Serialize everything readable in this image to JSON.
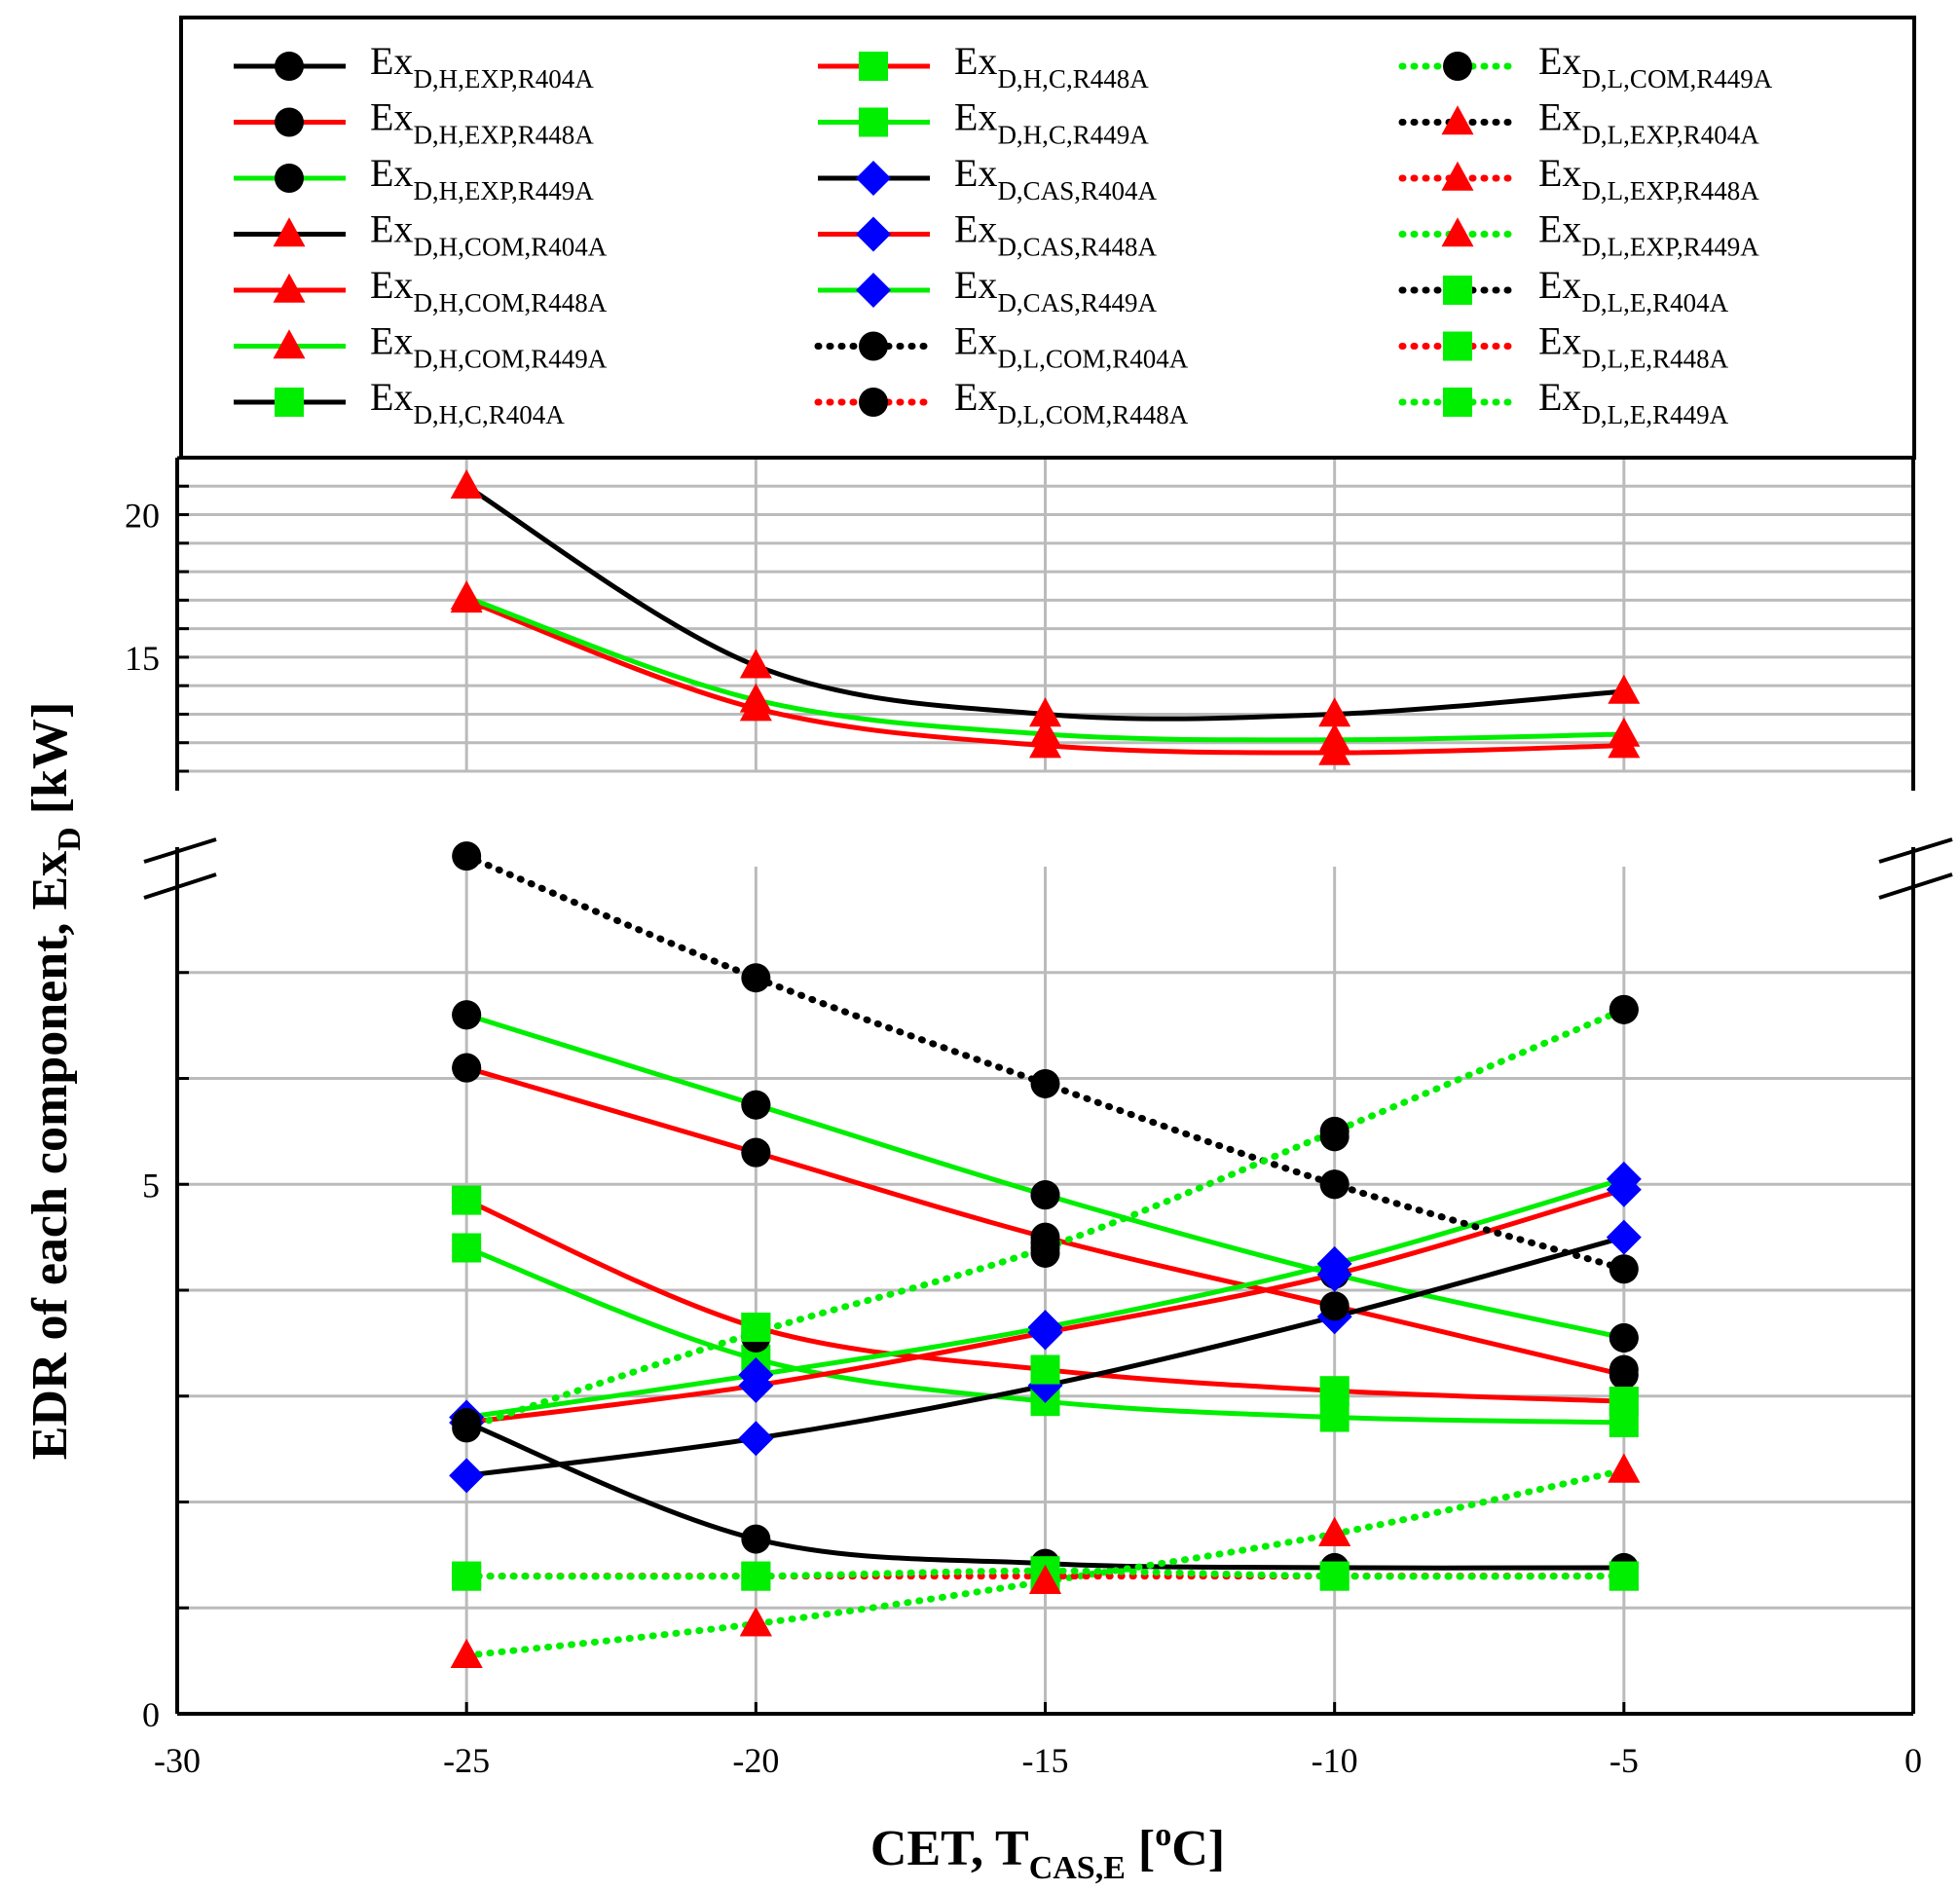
{
  "chart_data": {
    "type": "line",
    "xlabel": {
      "main": "CET, T",
      "sub": "CAS,E",
      "sup": "o",
      "unit_suffix": "C]",
      "bracket": "["
    },
    "ylabel": {
      "main": "EDR of each component, Ex",
      "sub": "D",
      "suffix": " [kW]"
    },
    "xlim": [
      -30,
      0
    ],
    "x_ticks": [
      "-30",
      "-25",
      "-20",
      "-15",
      "-10",
      "-5",
      "0"
    ],
    "ylim_lower": [
      0,
      8
    ],
    "ylim_upper": [
      11,
      22
    ],
    "y_ticks_lower": [
      "0",
      "5"
    ],
    "y_ticks_upper": [
      "15",
      "20"
    ],
    "axis_break": true,
    "grid": true,
    "legend_position": "top",
    "colors": {
      "R404A": "#000000",
      "R448A": "#ff0000",
      "R449A": "#00ee00",
      "triangle_marker": "#ff0000",
      "square_marker": "#00ee00",
      "diamond_marker": "#0000ff",
      "circle_marker": "#000000"
    },
    "x": [
      -25,
      -20,
      -15,
      -10,
      -5
    ],
    "series": [
      {
        "name": "Ex",
        "sub": "D,H,EXP,R404A",
        "color": "#000000",
        "dash": "solid",
        "marker": "circle",
        "values": [
          2.75,
          1.65,
          1.42,
          1.38,
          1.38
        ]
      },
      {
        "name": "Ex",
        "sub": "D,H,EXP,R448A",
        "color": "#ff0000",
        "dash": "solid",
        "marker": "circle",
        "values": [
          6.1,
          5.3,
          4.5,
          3.85,
          3.2
        ]
      },
      {
        "name": "Ex",
        "sub": "D,H,EXP,R449A",
        "color": "#00ee00",
        "dash": "solid",
        "marker": "circle",
        "values": [
          6.6,
          5.75,
          4.9,
          4.15,
          3.55
        ]
      },
      {
        "name": "Ex",
        "sub": "D,H,COM,R404A",
        "color": "#000000",
        "dash": "solid",
        "marker": "triangle",
        "values": [
          21,
          14.7,
          13,
          13,
          13.8
        ]
      },
      {
        "name": "Ex",
        "sub": "D,H,COM,R448A",
        "color": "#ff0000",
        "dash": "solid",
        "marker": "triangle",
        "values": [
          17,
          13.2,
          11.9,
          11.65,
          11.9
        ]
      },
      {
        "name": "Ex",
        "sub": "D,H,COM,R449A",
        "color": "#00ee00",
        "dash": "solid",
        "marker": "triangle",
        "values": [
          17.1,
          13.5,
          12.3,
          12.1,
          12.3
        ]
      },
      {
        "name": "Ex",
        "sub": "D,H,C,R404A",
        "color": "#000000",
        "dash": "solid",
        "marker": "square",
        "values": [
          null,
          null,
          null,
          null,
          null
        ]
      },
      {
        "name": "Ex",
        "sub": "D,H,C,R448A",
        "color": "#ff0000",
        "dash": "solid",
        "marker": "square",
        "values": [
          4.85,
          3.65,
          3.25,
          3.05,
          2.95
        ]
      },
      {
        "name": "Ex",
        "sub": "D,H,C,R449A",
        "color": "#00ee00",
        "dash": "solid",
        "marker": "square",
        "values": [
          4.4,
          3.35,
          2.95,
          2.8,
          2.75
        ]
      },
      {
        "name": "Ex",
        "sub": "D,CAS,R404A",
        "color": "#000000",
        "dash": "solid",
        "marker": "diamond",
        "values": [
          2.25,
          2.6,
          3.1,
          3.75,
          4.5
        ]
      },
      {
        "name": "Ex",
        "sub": "D,CAS,R448A",
        "color": "#ff0000",
        "dash": "solid",
        "marker": "diamond",
        "values": [
          2.75,
          3.1,
          3.6,
          4.15,
          4.95
        ]
      },
      {
        "name": "Ex",
        "sub": "D,CAS,R449A",
        "color": "#00ee00",
        "dash": "solid",
        "marker": "diamond",
        "values": [
          2.8,
          3.2,
          3.65,
          4.25,
          5.05
        ]
      },
      {
        "name": "Ex",
        "sub": "D,L,COM,R404A",
        "color": "#000000",
        "dash": "dotted",
        "marker": "circle",
        "values": [
          8.1,
          6.95,
          5.95,
          5.0,
          4.2
        ]
      },
      {
        "name": "Ex",
        "sub": "D,L,COM,R448A",
        "color": "#ff0000",
        "dash": "dotted",
        "marker": "circle",
        "values": [
          null,
          null,
          null,
          null,
          null
        ]
      },
      {
        "name": "Ex",
        "sub": "D,L,COM,R449A",
        "color": "#00ee00",
        "dash": "dotted",
        "marker": "circle",
        "values": [
          2.7,
          3.6,
          4.4,
          5.5,
          6.65
        ]
      },
      {
        "name": "Ex",
        "sub": "D,L,EXP,R404A",
        "color": "#000000",
        "dash": "dotted",
        "marker": "triangle",
        "values": [
          null,
          null,
          null,
          null,
          null
        ]
      },
      {
        "name": "Ex",
        "sub": "D,L,EXP,R448A",
        "color": "#ff0000",
        "dash": "dotted",
        "marker": "triangle",
        "values": [
          null,
          null,
          null,
          null,
          null
        ]
      },
      {
        "name": "Ex",
        "sub": "D,L,EXP,R449A",
        "color": "#00ee00",
        "dash": "dotted",
        "marker": "triangle",
        "values": [
          0.55,
          0.85,
          1.25,
          1.7,
          2.3
        ]
      },
      {
        "name": "Ex",
        "sub": "D,L,E,R404A",
        "color": "#000000",
        "dash": "dotted",
        "marker": "square",
        "values": [
          null,
          null,
          null,
          null,
          null
        ]
      },
      {
        "name": "Ex",
        "sub": "D,L,E,R448A",
        "color": "#ff0000",
        "dash": "dotted",
        "marker": "square",
        "values": [
          1.3,
          1.3,
          1.3,
          1.3,
          1.3
        ]
      },
      {
        "name": "Ex",
        "sub": "D,L,E,R449A",
        "color": "#00ee00",
        "dash": "dotted",
        "marker": "square",
        "values": [
          1.3,
          1.3,
          1.35,
          1.3,
          1.3
        ]
      }
    ],
    "extra_markers": [
      {
        "marker": "circle",
        "color": "#000000",
        "x": -25,
        "y": 6.6
      },
      {
        "marker": "circle",
        "color": "#000000",
        "x": -25,
        "y": 6.1
      },
      {
        "marker": "circle",
        "color": "#000000",
        "x": -20,
        "y": 5.75
      },
      {
        "marker": "circle",
        "color": "#000000",
        "x": -20,
        "y": 5.3
      },
      {
        "marker": "circle",
        "color": "#000000",
        "x": -20,
        "y": 3.55
      },
      {
        "marker": "circle",
        "color": "#000000",
        "x": -15,
        "y": 4.9
      },
      {
        "marker": "circle",
        "color": "#000000",
        "x": -15,
        "y": 4.45
      },
      {
        "marker": "circle",
        "color": "#000000",
        "x": -15,
        "y": 4.35
      },
      {
        "marker": "circle",
        "color": "#000000",
        "x": -10,
        "y": 5.45
      },
      {
        "marker": "circle",
        "color": "#000000",
        "x": -10,
        "y": 3.85
      },
      {
        "marker": "circle",
        "color": "#000000",
        "x": -5,
        "y": 3.55
      },
      {
        "marker": "circle",
        "color": "#000000",
        "x": -5,
        "y": 3.25
      },
      {
        "marker": "circle",
        "color": "#000000",
        "x": -10,
        "y": 5.0
      },
      {
        "marker": "circle",
        "color": "#000000",
        "x": -25,
        "y": 2.75
      },
      {
        "marker": "circle",
        "color": "#000000",
        "x": -5,
        "y": 6.65
      },
      {
        "marker": "triangle",
        "color": "#ff0000",
        "x": -10,
        "y": 1.7
      },
      {
        "marker": "triangle",
        "color": "#ff0000",
        "x": -20,
        "y": 0.85
      },
      {
        "marker": "triangle",
        "color": "#ff0000",
        "x": -25,
        "y": 0.55
      },
      {
        "marker": "triangle",
        "color": "#ff0000",
        "x": -5,
        "y": 2.3
      },
      {
        "marker": "triangle",
        "color": "#ff0000",
        "x": -15,
        "y": 1.25
      },
      {
        "marker": "square",
        "color": "#00ee00",
        "x": -5,
        "y": 2.95
      },
      {
        "marker": "square",
        "color": "#00ee00",
        "x": -10,
        "y": 3.05
      },
      {
        "marker": "square",
        "color": "#00ee00",
        "x": -15,
        "y": 3.25
      },
      {
        "marker": "square",
        "color": "#00ee00",
        "x": -20,
        "y": 3.65
      },
      {
        "marker": "square",
        "color": "#00ee00",
        "x": -25,
        "y": 4.85
      }
    ]
  }
}
